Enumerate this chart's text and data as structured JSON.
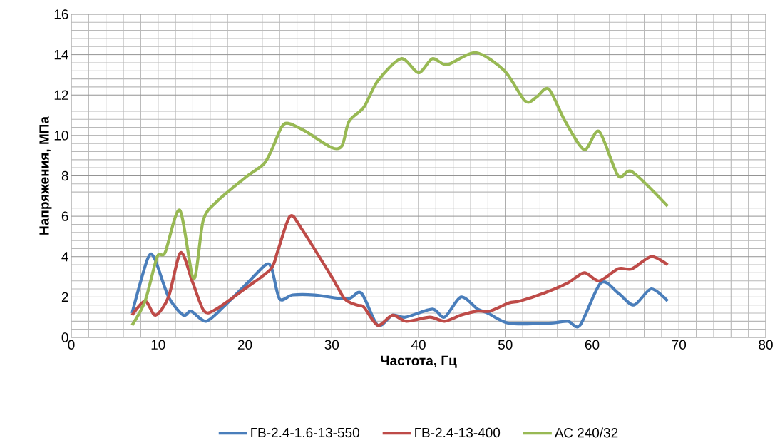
{
  "chart_data": {
    "type": "line",
    "xlabel": "Частота, Гц",
    "ylabel": "Напряжения, МПа",
    "xlim": [
      0,
      80
    ],
    "ylim": [
      0,
      16
    ],
    "xticks": [
      0,
      10,
      20,
      30,
      40,
      50,
      60,
      70,
      80
    ],
    "yticks": [
      0,
      2,
      4,
      6,
      8,
      10,
      12,
      14,
      16
    ],
    "grid": true,
    "legend": "bottom",
    "marker": "none",
    "line_style": "solid",
    "series": [
      {
        "name": "ГВ-2.4-1.6-13-550",
        "color": "#4a7ebb",
        "x": [
          7,
          8.8,
          9.6,
          11.2,
          12.9,
          13.8,
          15.5,
          17.5,
          20.3,
          22.4,
          23.1,
          24,
          25.5,
          28,
          31.8,
          33.4,
          35.3,
          37,
          38.5,
          41.6,
          43,
          44.9,
          46.8,
          48,
          50.4,
          55,
          57.2,
          58.6,
          61,
          63,
          64.8,
          66.8,
          68.7
        ],
        "values": [
          1.2,
          3.9,
          3.9,
          2.0,
          1.1,
          1.3,
          0.8,
          1.5,
          2.7,
          3.6,
          3.4,
          1.9,
          2.1,
          2.1,
          1.9,
          2.2,
          0.6,
          1.1,
          1.0,
          1.4,
          1.0,
          2.0,
          1.4,
          1.2,
          0.7,
          0.7,
          0.8,
          0.6,
          2.7,
          2.2,
          1.6,
          2.4,
          1.8
        ]
      },
      {
        "name": "ГВ-2.4-13-400",
        "color": "#be4b48",
        "x": [
          7,
          8.5,
          9.7,
          11.2,
          12.6,
          14,
          15.3,
          16.7,
          20.3,
          23,
          23.8,
          25.2,
          26.5,
          30,
          31.5,
          32.9,
          33.7,
          35.3,
          37,
          38.6,
          41.3,
          43,
          44.9,
          46.8,
          48.2,
          50.4,
          51.7,
          54.5,
          57.2,
          59.1,
          60.8,
          63,
          64.6,
          66.8,
          68.7
        ],
        "values": [
          1.1,
          1.8,
          1.1,
          2.0,
          4.2,
          2.7,
          1.3,
          1.4,
          2.5,
          3.4,
          4.3,
          6.0,
          5.4,
          3.0,
          1.9,
          1.6,
          1.5,
          0.6,
          1.1,
          0.8,
          1.0,
          0.8,
          1.1,
          1.3,
          1.3,
          1.7,
          1.8,
          2.2,
          2.7,
          3.2,
          2.8,
          3.4,
          3.4,
          4.0,
          3.6
        ]
      },
      {
        "name": "АС 240/32",
        "color": "#98b954",
        "x": [
          7,
          8.5,
          9.9,
          10.8,
          12.5,
          14.1,
          15.2,
          16.7,
          20,
          22.2,
          23.2,
          24.2,
          25,
          27,
          30,
          31.2,
          32,
          33.7,
          35.3,
          38,
          40,
          41.6,
          43.3,
          46.6,
          49.9,
          52.3,
          53.6,
          55,
          56.9,
          59.1,
          60.8,
          63,
          64.6,
          68.7
        ],
        "values": [
          0.6,
          1.8,
          4.0,
          4.2,
          6.3,
          2.9,
          5.8,
          6.7,
          7.9,
          8.6,
          9.4,
          10.4,
          10.6,
          10.2,
          9.4,
          9.5,
          10.7,
          11.4,
          12.7,
          13.8,
          13.1,
          13.8,
          13.5,
          14.1,
          13.2,
          11.7,
          11.9,
          12.3,
          10.7,
          9.3,
          10.2,
          8.0,
          8.2,
          6.5
        ]
      }
    ]
  }
}
